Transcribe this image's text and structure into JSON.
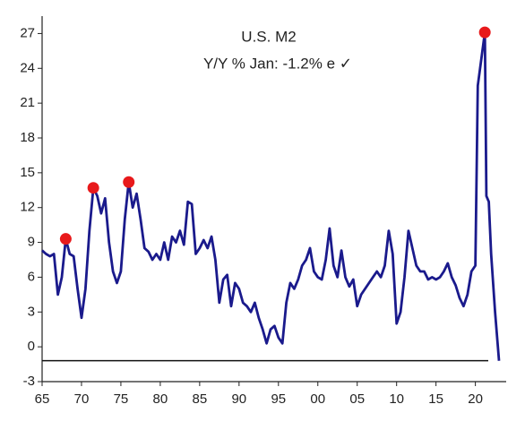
{
  "chart_data": {
    "type": "line",
    "title": "U.S. M2",
    "subtitle": "Y/Y %   Jan: -1.2% e ✓",
    "x": [
      1965,
      1965.5,
      1966,
      1966.5,
      1967,
      1967.5,
      1968,
      1968.5,
      1969,
      1969.5,
      1970,
      1970.5,
      1971,
      1971.5,
      1972,
      1972.5,
      1973,
      1973.5,
      1974,
      1974.5,
      1975,
      1975.5,
      1976,
      1976.5,
      1977,
      1977.5,
      1978,
      1978.5,
      1979,
      1979.5,
      1980,
      1980.5,
      1981,
      1981.5,
      1982,
      1982.5,
      1983,
      1983.5,
      1984,
      1984.5,
      1985,
      1985.5,
      1986,
      1986.5,
      1987,
      1987.5,
      1988,
      1988.5,
      1989,
      1989.5,
      1990,
      1990.5,
      1991,
      1991.5,
      1992,
      1992.5,
      1993,
      1993.5,
      1994,
      1994.5,
      1995,
      1995.5,
      1996,
      1996.5,
      1997,
      1997.5,
      1998,
      1998.5,
      1999,
      1999.5,
      2000,
      2000.5,
      2001,
      2001.5,
      2002,
      2002.5,
      2003,
      2003.5,
      2004,
      2004.5,
      2005,
      2005.5,
      2006,
      2006.5,
      2007,
      2007.5,
      2008,
      2008.5,
      2009,
      2009.5,
      2010,
      2010.5,
      2011,
      2011.5,
      2012,
      2012.5,
      2013,
      2013.5,
      2014,
      2014.5,
      2015,
      2015.5,
      2016,
      2016.5,
      2017,
      2017.5,
      2018,
      2018.5,
      2019,
      2019.5,
      2020,
      2020.3,
      2021.2,
      2021.4,
      2021.7,
      2022,
      2022.5,
      2023
    ],
    "values": [
      8.3,
      8.0,
      7.8,
      8.0,
      4.5,
      6.0,
      9.3,
      8.0,
      7.8,
      5.0,
      2.5,
      5.0,
      10.0,
      13.7,
      13.0,
      11.5,
      12.8,
      9.0,
      6.5,
      5.5,
      6.5,
      11.0,
      14.2,
      12.0,
      13.2,
      11.0,
      8.5,
      8.2,
      7.5,
      8.0,
      7.5,
      9.0,
      7.5,
      9.5,
      9.0,
      10.0,
      8.8,
      12.5,
      12.3,
      8.0,
      8.5,
      9.2,
      8.5,
      9.5,
      7.5,
      3.8,
      5.8,
      6.2,
      3.5,
      5.5,
      5.0,
      3.8,
      3.5,
      3.0,
      3.8,
      2.5,
      1.5,
      0.3,
      1.5,
      1.8,
      0.8,
      0.3,
      3.8,
      5.5,
      5.0,
      5.8,
      7.0,
      7.5,
      8.5,
      6.5,
      6.0,
      5.8,
      7.5,
      10.2,
      7.0,
      6.0,
      8.3,
      6.0,
      5.2,
      5.8,
      3.5,
      4.5,
      5.0,
      5.5,
      6.0,
      6.5,
      6.0,
      7.0,
      10.0,
      8.0,
      2.0,
      3.0,
      6.0,
      10.0,
      8.5,
      7.0,
      6.5,
      6.5,
      5.8,
      6.0,
      5.8,
      6.0,
      6.5,
      7.2,
      6.0,
      5.3,
      4.2,
      3.5,
      4.5,
      6.5,
      7.0,
      22.5,
      27.1,
      13.0,
      12.5,
      8.0,
      3.0,
      -1.2
    ],
    "color": "#1a1a8c",
    "highlights": {
      "x": [
        1968,
        1971.5,
        1976,
        2021.2
      ],
      "values": [
        9.3,
        13.7,
        14.2,
        27.1
      ],
      "color": "#e8191b"
    },
    "hline": -1.2,
    "xlim": [
      1965,
      2023
    ],
    "ylim": [
      -3,
      28.5
    ],
    "xticks": [
      {
        "value": 1965,
        "label": "65"
      },
      {
        "value": 1970,
        "label": "70"
      },
      {
        "value": 1975,
        "label": "75"
      },
      {
        "value": 1980,
        "label": "80"
      },
      {
        "value": 1985,
        "label": "85"
      },
      {
        "value": 1990,
        "label": "90"
      },
      {
        "value": 1995,
        "label": "95"
      },
      {
        "value": 2000,
        "label": "00"
      },
      {
        "value": 2005,
        "label": "05"
      },
      {
        "value": 2010,
        "label": "10"
      },
      {
        "value": 2015,
        "label": "15"
      },
      {
        "value": 2020,
        "label": "20"
      }
    ],
    "yticks": [
      -3,
      0,
      3,
      6,
      9,
      12,
      15,
      18,
      21,
      24,
      27
    ]
  }
}
